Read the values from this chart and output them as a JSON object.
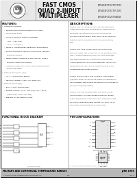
{
  "title_line1": "FAST CMOS",
  "title_line2": "QUAD 2-INPUT",
  "title_line3": "MULTIPLEXER",
  "part1": "IDT54/74FCT157T/FCT157",
  "part2": "IDT54/74FCT257T/FCT257",
  "part3": "IDT54/74FCT2257T/ATQB",
  "features_title": "FEATURES:",
  "features": [
    "•  Commercial features:",
    "    –  Multi-port/multi-output leakage of 5μA (max.)",
    "    –  CMOS power saves",
    "    –  True TTL input and output compatibility",
    "         • VIH = 2.0V (typ.)",
    "         • VOL = 0.5V (typ.)",
    "    –  Meets or exceeds JEDEC standard 18 specifications",
    "    –  Product available in Radiation Tolerant and Radiation",
    "         Enhanced versions",
    "    –  Military product compliant to MIL-STD-883, Class B",
    "         and DESC listed (dual marked)",
    "    –  Available in SMD, SOIC, SSOP, CDIP, DIP/PDIP/CERDIP",
    "         and LCC packages",
    "•  Features for FCT/FCT-A(5V):",
    "    –  Icc, A, C and D speed grades",
    "    –  High-drive outputs (-70mA IOH, 48mA IOL)",
    "•  Features for FCTT(5V):",
    "    –  BCG, A, and C speed grades",
    "    –  Resistor outputs: +FCTA: 25Ω (typ.); FCT-A, (BSIT)",
    "         (typical max. 100mA-Vol, 85Ω)",
    "    –  Reduced system switching noise"
  ],
  "description_title": "DESCRIPTION:",
  "desc_lines": [
    "The FCT 157T, FCT 257T/FCT 2257T are high-speed quad",
    "2-input multiplexers built using advanced, balanced CMOS",
    "technology. Four bits of data from two sources can be",
    "selected using the common select input. The four balanced",
    "outputs present the selected data in true (non-inverting)",
    "form.",
    "",
    "The FCT 157T has a common active-LOW enable input.",
    "When the enable input is not active, all four outputs are held",
    "LOW. A common application of FCT 157T is to move data",
    "from two different groups of registers to a common bus.",
    "Another application is as a function generator. The FCT 157T",
    "can generate any one of the 16 different functions of two",
    "variables with one variable common.",
    "",
    "The FCT 257T/FCT 2257T have a common Output Enable",
    "(OE) input. When OE is active, the outputs are switched to a",
    "high impedance state allowing the outputs to interface directly",
    "with bus-oriented applications.",
    "",
    "The FCT 2257T has balanced output drives with current",
    "limiting resistors. This offers low ground bounce, minimal",
    "undershoot/overshoot output termination reducing the need",
    "for external series terminating resistors. FCT 2257T can re-",
    "place plug-in replacements for FCT 2257 parts."
  ],
  "functional_block_title": "FUNCTIONAL BLOCK DIAGRAM",
  "pin_config_title": "PIN CONFIGURATIONS",
  "footer_left": "MILITARY AND COMMERCIAL TEMPERATURE RANGES",
  "footer_right": "JUNE 1998",
  "footer_note": "* 5 to 5.0 ns, 200ps AC Type AC Spec",
  "bg_color": "#ffffff",
  "border_color": "#000000",
  "text_color": "#000000",
  "header_sep_color": "#888888",
  "footer_bg": "#b0b0b0"
}
